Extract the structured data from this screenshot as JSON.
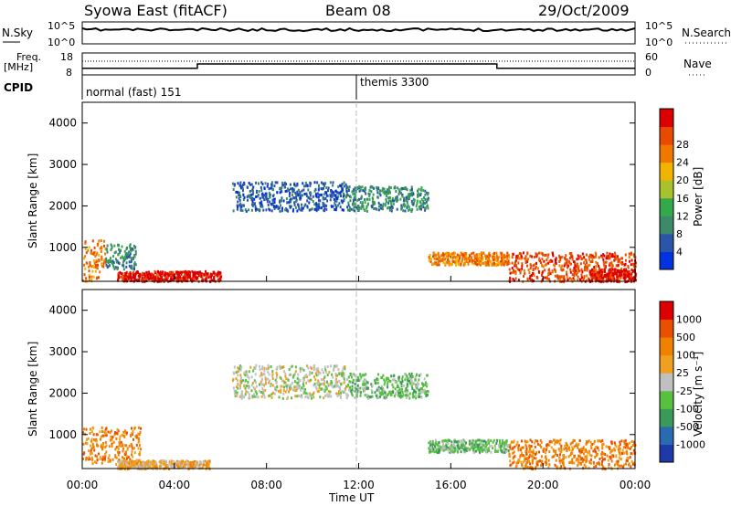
{
  "header": {
    "station": "Syowa East (fitACF)",
    "beam": "Beam 08",
    "date": "29/Oct/2009"
  },
  "noise_panel": {
    "left_label": "N.Sky",
    "right_label": "N.Search",
    "left_ticks": [
      "10^5",
      "10^0"
    ],
    "right_ticks": [
      "10^5",
      "10^0"
    ]
  },
  "freq_panel": {
    "left_label_1": "Freq.",
    "left_label_2": "[MHz]",
    "left_ticks": [
      "18",
      "8"
    ],
    "right_label": "Nave",
    "right_ticks": [
      "60",
      "0"
    ],
    "cpid_label": "CPID",
    "cpid_segments": [
      {
        "start": 0,
        "label": "normal (fast) 151"
      },
      {
        "start": 12,
        "label": "themis 3300"
      }
    ],
    "freq_steps_mhz": [
      {
        "from": 0,
        "to": 5,
        "value": 11
      },
      {
        "from": 5,
        "to": 18,
        "value": 13
      },
      {
        "from": 18,
        "to": 24,
        "value": 11
      }
    ]
  },
  "time_axis": {
    "label": "Time UT",
    "ticks": [
      "00:00",
      "04:00",
      "08:00",
      "12:00",
      "16:00",
      "20:00",
      "00:00"
    ],
    "range_hours": [
      0,
      24
    ]
  },
  "power_panel": {
    "ylabel": "Slant Range [km]",
    "yticks": [
      "1000",
      "2000",
      "3000",
      "4000"
    ],
    "colorbar_label": "Power [dB]",
    "colorbar_ticks": [
      "4",
      "8",
      "12",
      "16",
      "20",
      "24",
      "28"
    ],
    "colors": [
      "#0033dd",
      "#2a55a8",
      "#3b8a6a",
      "#35a84a",
      "#a8c22e",
      "#f0b400",
      "#f07800",
      "#e84a00",
      "#dd0000"
    ]
  },
  "velocity_panel": {
    "ylabel": "Slant Range [km]",
    "yticks": [
      "1000",
      "2000",
      "3000",
      "4000"
    ],
    "colorbar_label": "Velocity [m s⁻¹]",
    "colorbar_ticks": [
      "1000",
      "500",
      "100",
      "25",
      "-25",
      "-100",
      "-500",
      "-1000"
    ],
    "colors": [
      "#1e3aa8",
      "#2a6ab0",
      "#3a9a5a",
      "#58c040",
      "#c0c0c0",
      "#f0a020",
      "#f08000",
      "#e85000",
      "#dd0000"
    ]
  },
  "chart_data": [
    {
      "type": "heatmap",
      "title": "Syowa East (fitACF) Beam 08 29/Oct/2009",
      "xlabel": "Time UT",
      "ylabel": "Slant Range [km]",
      "colorbar": "Power [dB]",
      "xlim": [
        0,
        24
      ],
      "ylim": [
        180,
        4500
      ],
      "regions": [
        {
          "t": [
            0.0,
            1.0
          ],
          "r": [
            200,
            1200
          ],
          "level": 6
        },
        {
          "t": [
            1.0,
            2.3
          ],
          "r": [
            500,
            1100
          ],
          "level": 2
        },
        {
          "t": [
            1.5,
            6.0
          ],
          "r": [
            200,
            450
          ],
          "level": 8
        },
        {
          "t": [
            6.5,
            11.5
          ],
          "r": [
            1900,
            2600
          ],
          "level": 1
        },
        {
          "t": [
            11.5,
            15.0
          ],
          "r": [
            1900,
            2500
          ],
          "level": 2
        },
        {
          "t": [
            15.0,
            18.5
          ],
          "r": [
            600,
            900
          ],
          "level": 6
        },
        {
          "t": [
            18.5,
            24.0
          ],
          "r": [
            200,
            900
          ],
          "level": 7
        },
        {
          "t": [
            22.0,
            24.0
          ],
          "r": [
            200,
            500
          ],
          "level": 8
        }
      ]
    },
    {
      "type": "heatmap",
      "title": "Syowa East (fitACF) Beam 08 29/Oct/2009",
      "xlabel": "Time UT",
      "ylabel": "Slant Range [km]",
      "colorbar": "Velocity [m s⁻¹]",
      "xlim": [
        0,
        24
      ],
      "ylim": [
        180,
        4500
      ],
      "regions": [
        {
          "t": [
            0.0,
            2.5
          ],
          "r": [
            300,
            1200
          ],
          "level": 6
        },
        {
          "t": [
            1.5,
            5.5
          ],
          "r": [
            200,
            400
          ],
          "level": 5
        },
        {
          "t": [
            6.5,
            11.5
          ],
          "r": [
            1900,
            2700
          ],
          "level": 4
        },
        {
          "t": [
            11.5,
            15.0
          ],
          "r": [
            1900,
            2500
          ],
          "level": 3
        },
        {
          "t": [
            15.0,
            18.5
          ],
          "r": [
            600,
            900
          ],
          "level": 3
        },
        {
          "t": [
            18.5,
            24.0
          ],
          "r": [
            200,
            900
          ],
          "level": 6
        }
      ]
    }
  ]
}
